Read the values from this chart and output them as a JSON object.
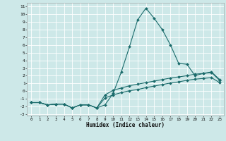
{
  "title": "",
  "xlabel": "Humidex (Indice chaleur)",
  "background_color": "#cde8e8",
  "grid_color": "#ffffff",
  "line_color": "#1a6b6b",
  "xlim": [
    -0.5,
    23.5
  ],
  "ylim": [
    -3.2,
    11.5
  ],
  "xticks": [
    0,
    1,
    2,
    3,
    4,
    5,
    6,
    7,
    8,
    9,
    10,
    11,
    12,
    13,
    14,
    15,
    16,
    17,
    18,
    19,
    20,
    21,
    22,
    23
  ],
  "yticks": [
    -3,
    -2,
    -1,
    0,
    1,
    2,
    3,
    4,
    5,
    6,
    7,
    8,
    9,
    10,
    11
  ],
  "line1_x": [
    0,
    1,
    2,
    3,
    4,
    5,
    6,
    7,
    8,
    9,
    10,
    11,
    12,
    13,
    14,
    15,
    16,
    17,
    18,
    19,
    20,
    21,
    22,
    23
  ],
  "line1_y": [
    -1.5,
    -1.5,
    -1.8,
    -1.7,
    -1.7,
    -2.2,
    -1.8,
    -1.8,
    -2.2,
    -1.8,
    -0.3,
    2.5,
    5.8,
    9.3,
    10.8,
    9.5,
    8.0,
    6.0,
    3.6,
    3.5,
    2.0,
    2.3,
    2.5,
    1.5
  ],
  "line2_x": [
    0,
    1,
    2,
    3,
    4,
    5,
    6,
    7,
    8,
    9,
    10,
    11,
    12,
    13,
    14,
    15,
    16,
    17,
    18,
    19,
    20,
    21,
    22,
    23
  ],
  "line2_y": [
    -1.5,
    -1.5,
    -1.8,
    -1.7,
    -1.7,
    -2.2,
    -1.8,
    -1.8,
    -2.2,
    -0.5,
    0.1,
    0.4,
    0.7,
    0.9,
    1.1,
    1.3,
    1.5,
    1.7,
    1.85,
    2.0,
    2.2,
    2.3,
    2.4,
    1.4
  ],
  "line3_x": [
    0,
    1,
    2,
    3,
    4,
    5,
    6,
    7,
    8,
    9,
    10,
    11,
    12,
    13,
    14,
    15,
    16,
    17,
    18,
    19,
    20,
    21,
    22,
    23
  ],
  "line3_y": [
    -1.5,
    -1.5,
    -1.8,
    -1.7,
    -1.7,
    -2.2,
    -1.8,
    -1.8,
    -2.2,
    -0.9,
    -0.5,
    -0.2,
    0.05,
    0.2,
    0.45,
    0.65,
    0.85,
    1.05,
    1.2,
    1.4,
    1.55,
    1.65,
    1.75,
    1.1
  ]
}
